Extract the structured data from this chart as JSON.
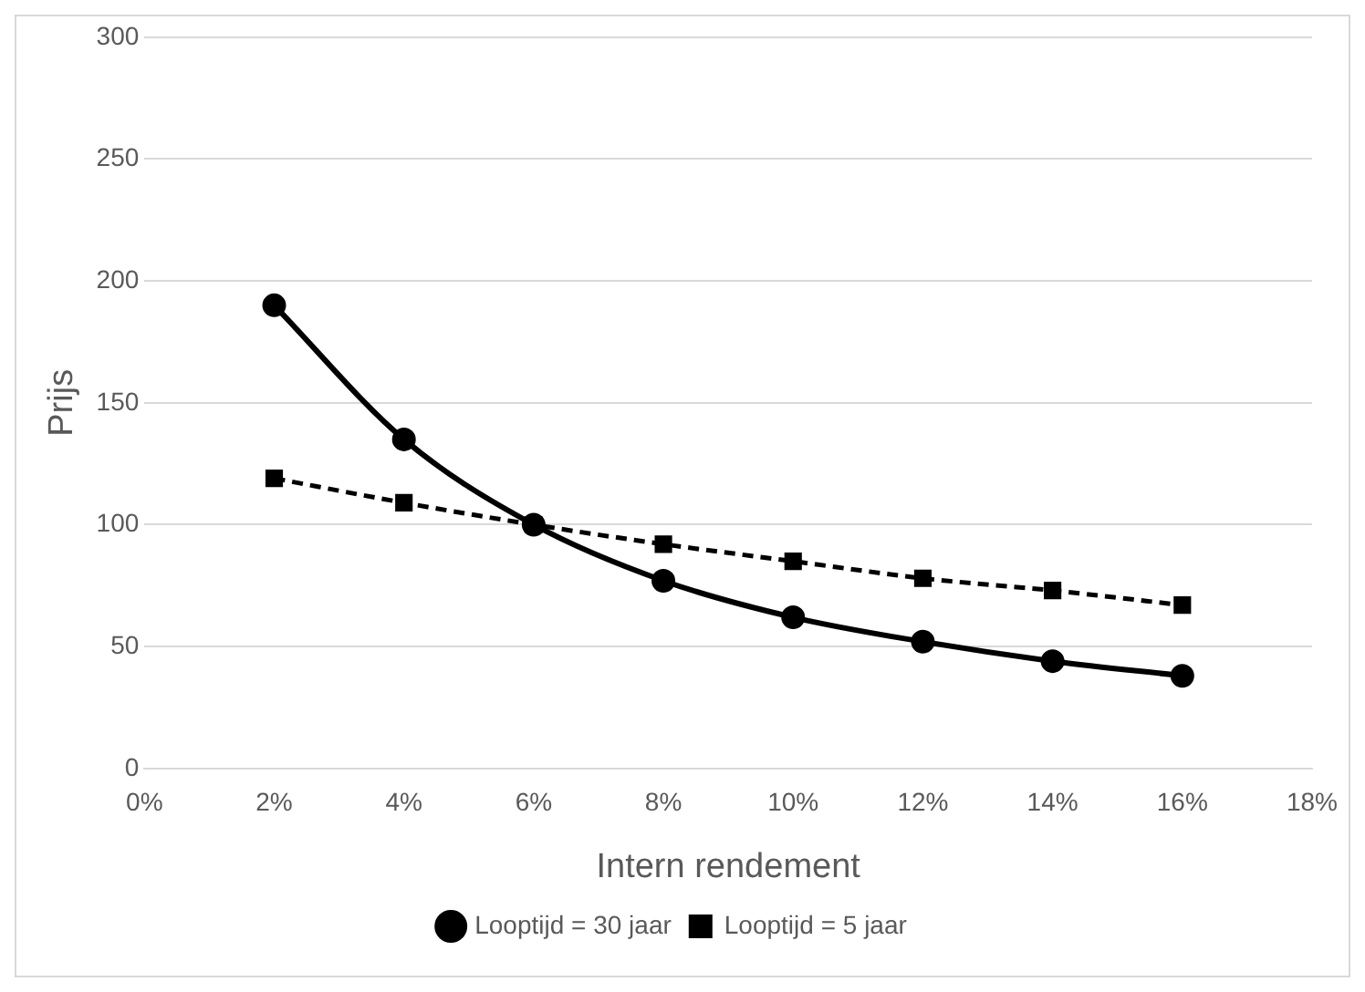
{
  "chart_data": {
    "type": "line",
    "xlabel": "Intern rendement",
    "ylabel": "Prijs",
    "x": [
      2,
      4,
      6,
      8,
      10,
      12,
      14,
      16
    ],
    "series": [
      {
        "name": "Looptijd = 30 jaar",
        "color": "#000000",
        "values": [
          190,
          135,
          100,
          77,
          62,
          52,
          44,
          38
        ],
        "marker": "circle",
        "line_style": "solid"
      },
      {
        "name": "Looptijd = 5 jaar",
        "color": "#000000",
        "values": [
          119,
          109,
          100,
          92,
          85,
          78,
          73,
          67
        ],
        "marker": "square",
        "line_style": "dashed"
      }
    ],
    "xlim": [
      0,
      18
    ],
    "xticks": [
      {
        "value": 0,
        "label": "0%"
      },
      {
        "value": 2,
        "label": "2%"
      },
      {
        "value": 4,
        "label": "4%"
      },
      {
        "value": 6,
        "label": "6%"
      },
      {
        "value": 8,
        "label": "8%"
      },
      {
        "value": 10,
        "label": "10%"
      },
      {
        "value": 12,
        "label": "12%"
      },
      {
        "value": 14,
        "label": "14%"
      },
      {
        "value": 16,
        "label": "16%"
      },
      {
        "value": 18,
        "label": "18%"
      }
    ],
    "ylim": [
      0,
      300
    ],
    "yticks": [
      0,
      50,
      100,
      150,
      200,
      250,
      300
    ],
    "grid": "y",
    "legend": "bottom"
  }
}
